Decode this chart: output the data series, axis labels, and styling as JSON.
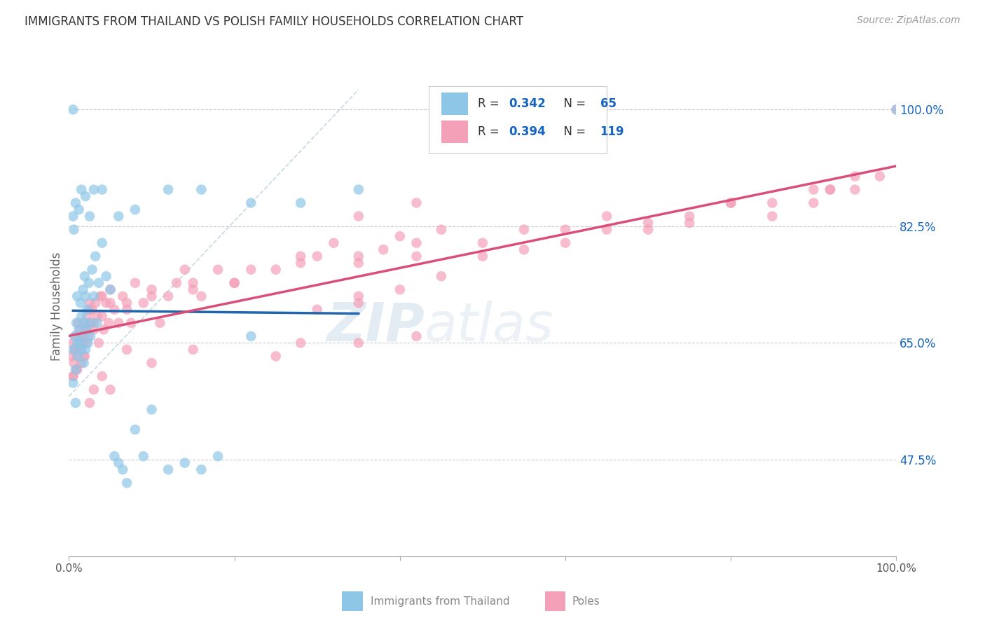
{
  "title": "IMMIGRANTS FROM THAILAND VS POLISH FAMILY HOUSEHOLDS CORRELATION CHART",
  "source": "Source: ZipAtlas.com",
  "ylabel": "Family Households",
  "ytick_labels": [
    "47.5%",
    "65.0%",
    "82.5%",
    "100.0%"
  ],
  "ytick_values": [
    0.475,
    0.65,
    0.825,
    1.0
  ],
  "xlim": [
    0.0,
    1.0
  ],
  "ylim": [
    0.33,
    1.08
  ],
  "legend_r_thailand": "0.342",
  "legend_n_thailand": "65",
  "legend_r_poles": "0.394",
  "legend_n_poles": "119",
  "color_thailand": "#8ec6e8",
  "color_poles": "#f4a0b8",
  "color_trend_thailand": "#2166ac",
  "color_trend_poles": "#d94f7a",
  "color_diagonal": "#b8cfe0",
  "watermark_zip": "ZIP",
  "watermark_atlas": "atlas",
  "background_color": "#ffffff",
  "legend_text_color": "#1565c0",
  "title_color": "#333333",
  "ytick_color": "#1565c0",
  "scatter_alpha": 0.7,
  "scatter_size": 110,
  "thailand_x": [
    0.005,
    0.005,
    0.007,
    0.008,
    0.009,
    0.01,
    0.01,
    0.011,
    0.012,
    0.013,
    0.014,
    0.015,
    0.015,
    0.016,
    0.017,
    0.018,
    0.018,
    0.019,
    0.02,
    0.02,
    0.021,
    0.022,
    0.023,
    0.024,
    0.025,
    0.026,
    0.028,
    0.03,
    0.032,
    0.034,
    0.036,
    0.04,
    0.045,
    0.05,
    0.055,
    0.06,
    0.065,
    0.07,
    0.08,
    0.09,
    0.1,
    0.12,
    0.14,
    0.16,
    0.18,
    0.005,
    0.006,
    0.008,
    0.012,
    0.015,
    0.02,
    0.025,
    0.03,
    0.04,
    0.06,
    0.08,
    0.12,
    0.16,
    0.22,
    0.28,
    0.35,
    0.22,
    0.005,
    0.008,
    1.0
  ],
  "thailand_y": [
    1.0,
    0.64,
    0.66,
    0.61,
    0.68,
    0.65,
    0.72,
    0.63,
    0.67,
    0.65,
    0.71,
    0.64,
    0.69,
    0.66,
    0.73,
    0.62,
    0.68,
    0.75,
    0.64,
    0.72,
    0.67,
    0.7,
    0.65,
    0.74,
    0.68,
    0.66,
    0.76,
    0.72,
    0.78,
    0.68,
    0.74,
    0.8,
    0.75,
    0.73,
    0.48,
    0.47,
    0.46,
    0.44,
    0.52,
    0.48,
    0.55,
    0.46,
    0.47,
    0.46,
    0.48,
    0.84,
    0.82,
    0.86,
    0.85,
    0.88,
    0.87,
    0.84,
    0.88,
    0.88,
    0.84,
    0.85,
    0.88,
    0.88,
    0.86,
    0.86,
    0.88,
    0.66,
    0.59,
    0.56,
    1.0
  ],
  "poles_x": [
    0.003,
    0.005,
    0.006,
    0.007,
    0.008,
    0.009,
    0.01,
    0.011,
    0.012,
    0.013,
    0.014,
    0.015,
    0.016,
    0.017,
    0.018,
    0.019,
    0.02,
    0.021,
    0.022,
    0.023,
    0.025,
    0.026,
    0.028,
    0.03,
    0.032,
    0.034,
    0.036,
    0.038,
    0.04,
    0.042,
    0.045,
    0.048,
    0.05,
    0.055,
    0.06,
    0.065,
    0.07,
    0.075,
    0.08,
    0.09,
    0.1,
    0.11,
    0.12,
    0.13,
    0.14,
    0.15,
    0.16,
    0.18,
    0.2,
    0.22,
    0.25,
    0.28,
    0.3,
    0.32,
    0.35,
    0.38,
    0.4,
    0.42,
    0.45,
    0.5,
    0.55,
    0.6,
    0.65,
    0.7,
    0.75,
    0.8,
    0.85,
    0.9,
    0.92,
    0.95,
    0.005,
    0.008,
    0.01,
    0.015,
    0.018,
    0.02,
    0.025,
    0.03,
    0.04,
    0.05,
    0.07,
    0.1,
    0.15,
    0.2,
    0.28,
    0.35,
    0.42,
    0.35,
    0.28,
    0.25,
    0.42,
    0.3,
    0.15,
    0.1,
    0.07,
    0.05,
    0.04,
    0.03,
    0.025,
    0.35,
    0.42,
    0.005,
    0.35,
    0.4,
    0.45,
    0.5,
    0.55,
    0.6,
    0.65,
    0.7,
    0.75,
    0.8,
    0.85,
    0.9,
    0.92,
    0.95,
    0.98,
    1.0,
    0.35
  ],
  "poles_y": [
    0.63,
    0.65,
    0.62,
    0.64,
    0.66,
    0.61,
    0.63,
    0.68,
    0.65,
    0.67,
    0.64,
    0.62,
    0.66,
    0.65,
    0.68,
    0.63,
    0.67,
    0.65,
    0.69,
    0.66,
    0.71,
    0.68,
    0.7,
    0.67,
    0.71,
    0.69,
    0.65,
    0.72,
    0.69,
    0.67,
    0.71,
    0.68,
    0.73,
    0.7,
    0.68,
    0.72,
    0.71,
    0.68,
    0.74,
    0.71,
    0.73,
    0.68,
    0.72,
    0.74,
    0.76,
    0.73,
    0.72,
    0.76,
    0.74,
    0.76,
    0.76,
    0.78,
    0.78,
    0.8,
    0.77,
    0.79,
    0.81,
    0.8,
    0.82,
    0.8,
    0.82,
    0.82,
    0.84,
    0.82,
    0.83,
    0.86,
    0.84,
    0.86,
    0.88,
    0.88,
    0.6,
    0.64,
    0.61,
    0.66,
    0.63,
    0.67,
    0.7,
    0.68,
    0.72,
    0.71,
    0.7,
    0.72,
    0.74,
    0.74,
    0.77,
    0.78,
    0.78,
    0.72,
    0.65,
    0.63,
    0.66,
    0.7,
    0.64,
    0.62,
    0.64,
    0.58,
    0.6,
    0.58,
    0.56,
    0.84,
    0.86,
    0.6,
    0.71,
    0.73,
    0.75,
    0.78,
    0.79,
    0.8,
    0.82,
    0.83,
    0.84,
    0.86,
    0.86,
    0.88,
    0.88,
    0.9,
    0.9,
    1.0,
    0.65
  ]
}
